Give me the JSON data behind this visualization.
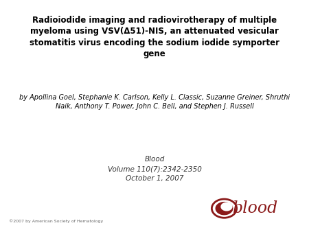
{
  "title": "Radioiodide imaging and radiovirotherapy of multiple\nmyeloma using VSV(Δ51)-NIS, an attenuated vesicular\nstomatitis virus encoding the sodium iodide symporter\ngene",
  "authors": "by Apollina Goel, Stephanie K. Carlson, Kelly L. Classic, Suzanne Greiner, Shruthi\nNaik, Anthony T. Power, John C. Bell, and Stephen J. Russell",
  "journal_line1": "Blood",
  "journal_line2": "Volume 110(7):2342-2350",
  "journal_line3": "October 1, 2007",
  "copyright": "©2007 by American Society of Hematology",
  "blood_text": "blood",
  "blood_color": "#8B1A1A",
  "background_color": "#ffffff",
  "title_fontsize": 8.5,
  "authors_fontsize": 7.0,
  "journal_fontsize": 7.5,
  "copyright_fontsize": 4.5,
  "blood_logo_fontsize": 17
}
